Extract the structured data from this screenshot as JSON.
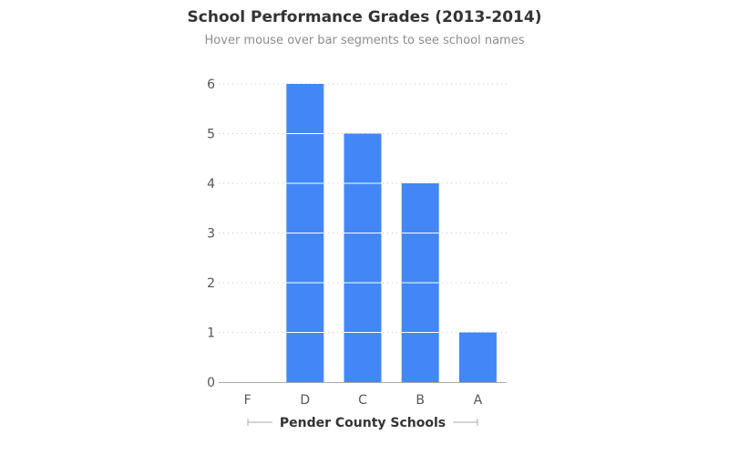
{
  "chart_data": {
    "type": "bar",
    "title": "School Performance Grades (2013-2014)",
    "subtitle": "Hover mouse over bar segments to see school names",
    "xlabel": "Pender County Schools",
    "ylabel": "",
    "categories": [
      "F",
      "D",
      "C",
      "B",
      "A"
    ],
    "values": [
      0,
      6,
      5,
      4,
      1
    ],
    "ylim": [
      0,
      6
    ],
    "yticks": [
      "0",
      "1",
      "2",
      "3",
      "4",
      "5",
      "6"
    ],
    "grid": "horizontal dotted",
    "legend": "none",
    "segment_unit": 1
  },
  "colors": {
    "bar": "#4287f5",
    "segment_divider": "#ffffff",
    "grid": "#c8c8c8",
    "axis": "#aaaaaa",
    "tick_text": "#555555",
    "title_text": "#333333",
    "subtitle_text": "#8c8c8c"
  }
}
